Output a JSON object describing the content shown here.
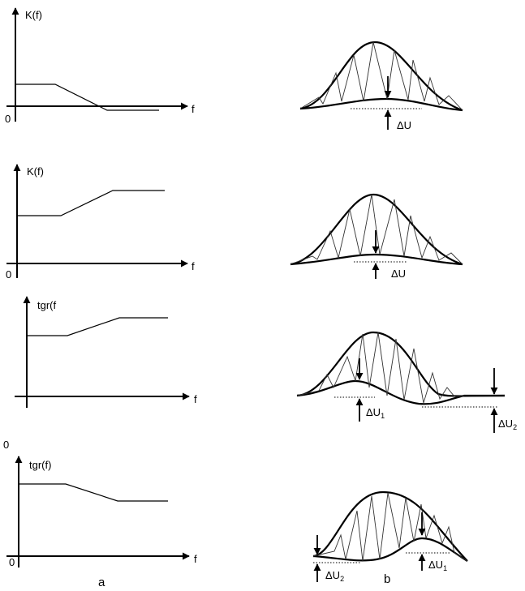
{
  "left_panels": [
    {
      "ylabel": "K(f)",
      "xlabel": "f",
      "origin": "0"
    },
    {
      "ylabel": "K(f)",
      "xlabel": "f",
      "origin": "0"
    },
    {
      "ylabel": "tgr(f",
      "xlabel": "f",
      "origin": "0"
    },
    {
      "ylabel": "tgr(f)",
      "xlabel": "f",
      "origin": "0"
    }
  ],
  "right_panels": [
    {
      "annotation": "ΔU"
    },
    {
      "annotation": "ΔU"
    },
    {
      "annotation_left": "ΔU",
      "annotation_left_sub": "1",
      "annotation_right": "ΔU",
      "annotation_right_sub": "2"
    },
    {
      "annotation_left": "ΔU",
      "annotation_left_sub": "2",
      "annotation_right": "ΔU",
      "annotation_right_sub": "1"
    }
  ],
  "captions": {
    "left": "a",
    "right": "b"
  }
}
